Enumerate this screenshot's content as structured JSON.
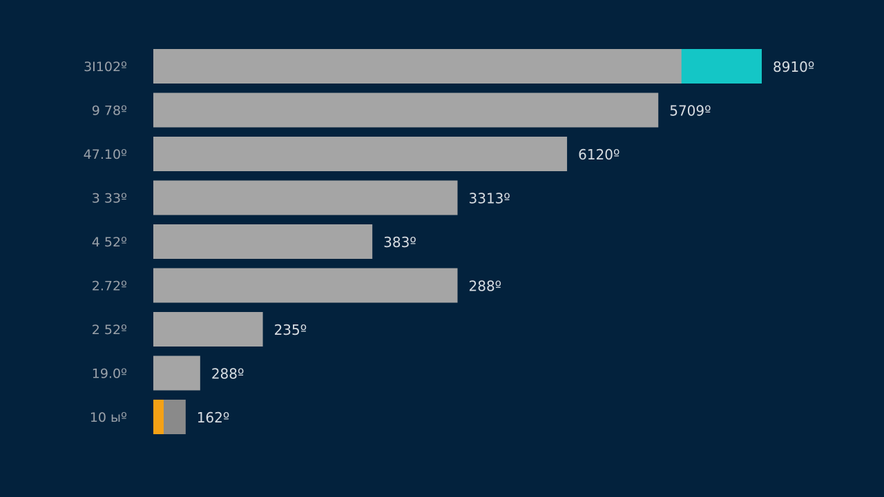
{
  "colors": {
    "background": "#03223d",
    "bar": "#a5a5a5",
    "highlight_top": "#14c6c6",
    "highlight_bottom": "#f5a116",
    "category_text": "#9aa1a9",
    "value_text": "#d8dde2"
  },
  "chart_data": {
    "type": "bar",
    "orientation": "horizontal",
    "categories": [
      "3I102º",
      "9 78º",
      "47.10º",
      "3 33º",
      "4 52º",
      "2.72º",
      "2 52º",
      "19.0º",
      "10 ыº"
    ],
    "value_labels": [
      "8910º",
      "5709º",
      "6120º",
      "3313º",
      "383º",
      "288º",
      "235º",
      "288º",
      "162º"
    ],
    "values": [
      8910,
      5709,
      6120,
      3313,
      383,
      288,
      235,
      288,
      162
    ],
    "bar_lengths": [
      1.0,
      0.83,
      0.68,
      0.5,
      0.36,
      0.5,
      0.18,
      0.077,
      0.053
    ],
    "highlight_segments": [
      {
        "index": 0,
        "color": "#14c6c6",
        "from": 0.868,
        "to": 1.0
      },
      {
        "index": 8,
        "color": "#f5a116",
        "from": 0.0,
        "to": 0.017
      }
    ],
    "title": "",
    "xlabel": "",
    "ylabel": "",
    "grid": false,
    "legend": "none"
  }
}
